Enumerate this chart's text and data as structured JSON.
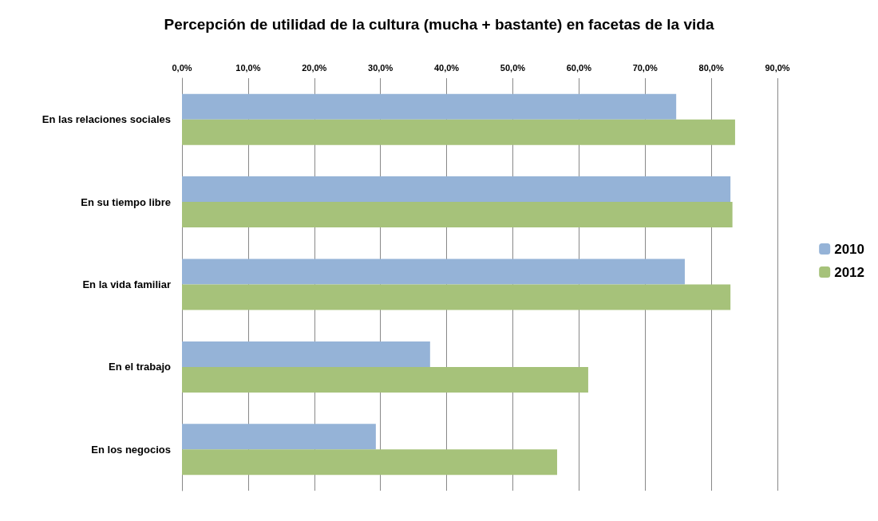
{
  "chart_data": {
    "type": "bar",
    "orientation": "horizontal",
    "title": "Percepción de utilidad de la cultura (mucha + bastante) en facetas de la vida",
    "categories": [
      "En las relaciones sociales",
      "En su tiempo libre",
      "En la vida familiar",
      "En el trabajo",
      "En los negocios"
    ],
    "series": [
      {
        "name": "2010",
        "color": "#95b3d7",
        "values": [
          74.7,
          82.9,
          76.0,
          37.5,
          29.3
        ]
      },
      {
        "name": "2012",
        "color": "#a6c27a",
        "values": [
          83.6,
          83.2,
          82.9,
          61.4,
          56.7
        ]
      }
    ],
    "xlim": [
      0,
      90
    ],
    "xticks": [
      {
        "value": 0,
        "label": "0,0%"
      },
      {
        "value": 10,
        "label": "10,0%"
      },
      {
        "value": 20,
        "label": "20,0%"
      },
      {
        "value": 30,
        "label": "30,0%"
      },
      {
        "value": 40,
        "label": "40,0%"
      },
      {
        "value": 50,
        "label": "50,0%"
      },
      {
        "value": 60,
        "label": "60,0%"
      },
      {
        "value": 70,
        "label": "70,0%"
      },
      {
        "value": 80,
        "label": "80,0%"
      },
      {
        "value": 90,
        "label": "90,0%"
      }
    ],
    "grid": "x",
    "legend": "right"
  }
}
